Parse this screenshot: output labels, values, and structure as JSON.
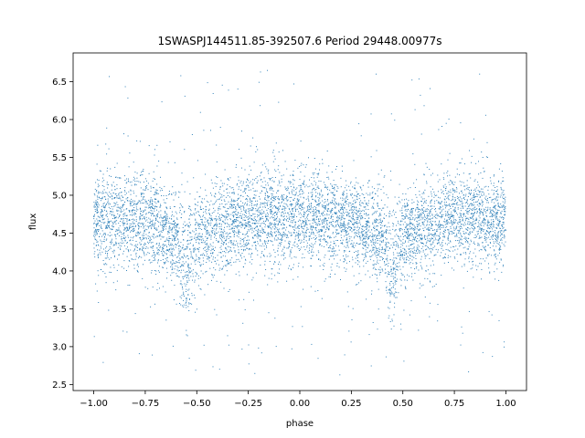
{
  "chart_data": {
    "type": "scatter",
    "title": "1SWASPJ144511.85-392507.6 Period 29448.00977s",
    "xlabel": "phase",
    "ylabel": "flux",
    "xlim": [
      -1.1,
      1.1
    ],
    "ylim": [
      2.42,
      6.88
    ],
    "xticks": [
      -1.0,
      -0.75,
      -0.5,
      -0.25,
      0.0,
      0.25,
      0.5,
      0.75,
      1.0
    ],
    "xtick_labels": [
      "−1.00",
      "−0.75",
      "−0.50",
      "−0.25",
      "0.00",
      "0.25",
      "0.50",
      "0.75",
      "1.00"
    ],
    "yticks": [
      2.5,
      3.0,
      3.5,
      4.0,
      4.5,
      5.0,
      5.5,
      6.0,
      6.5
    ],
    "ytick_labels": [
      "2.5",
      "3.0",
      "3.5",
      "4.0",
      "4.5",
      "5.0",
      "5.5",
      "6.0",
      "6.5"
    ],
    "grid": false,
    "legend": "none",
    "marker_color": "#1f77b4",
    "series": [
      {
        "phase_range": [
          -1.0,
          1.0
        ],
        "baseline_flux": 4.65,
        "core_band": [
          4.0,
          5.3
        ],
        "outlier_range": [
          2.6,
          6.65
        ],
        "dips": [
          {
            "phase": -0.55,
            "min_flux": 3.5
          },
          {
            "phase": 0.45,
            "min_flux": 3.5
          }
        ],
        "profile": [
          {
            "x": -1.0,
            "y": 4.65
          },
          {
            "x": -0.75,
            "y": 4.68
          },
          {
            "x": -0.6,
            "y": 4.45
          },
          {
            "x": -0.55,
            "y": 4.1
          },
          {
            "x": -0.5,
            "y": 4.45
          },
          {
            "x": -0.25,
            "y": 4.72
          },
          {
            "x": 0.0,
            "y": 4.7
          },
          {
            "x": 0.25,
            "y": 4.68
          },
          {
            "x": 0.4,
            "y": 4.45
          },
          {
            "x": 0.45,
            "y": 4.1
          },
          {
            "x": 0.5,
            "y": 4.45
          },
          {
            "x": 0.75,
            "y": 4.72
          },
          {
            "x": 1.0,
            "y": 4.65
          }
        ]
      }
    ]
  }
}
